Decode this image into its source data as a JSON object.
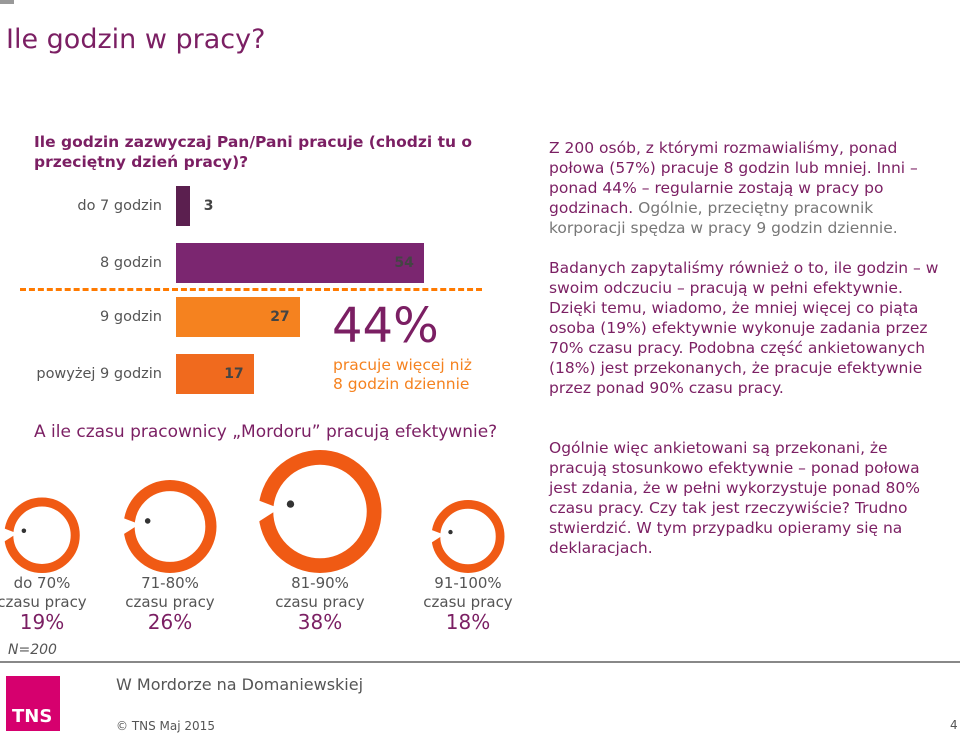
{
  "slide": {
    "title": "Ile godzin w pracy?",
    "question1": "Ile godzin zazwyczaj Pan/Pani pracuje (chodzi tu o przeciętny dzień pracy)?",
    "question2": "A ile czasu pracownicy „Mordoru” pracują efektywnie?",
    "highlight_pct": "44%",
    "highlight_line1": "pracuje więcej niż",
    "highlight_line2": "8 godzin dziennie",
    "n_label": "N=200"
  },
  "chart_data": [
    {
      "type": "bar",
      "orientation": "horizontal",
      "categories": [
        "do 7 godzin",
        "8 godzin",
        "9 godzin",
        "powyżej 9 godzin"
      ],
      "values": [
        3,
        54,
        27,
        17
      ],
      "colors": [
        "#5b1f4f",
        "#7b2670",
        "#f5821f",
        "#f06a1e"
      ],
      "title": "Ile godzin zazwyczaj Pan/Pani pracuje (chodzi tu o przeciętny dzień pracy)?"
    },
    {
      "type": "pictogram",
      "categories": [
        "do 70% czasu pracy",
        "71-80% czasu pracy",
        "81-90% czasu pracy",
        "91-100% czasu pracy"
      ],
      "values": [
        19,
        26,
        38,
        18
      ],
      "labels_line1": [
        "do 70%",
        "71-80%",
        "81-90%",
        "91-100%"
      ],
      "labels_line2": [
        "czasu pracy",
        "czasu pracy",
        "czasu pracy",
        "czasu pracy"
      ],
      "value_labels": [
        "19%",
        "26%",
        "38%",
        "18%"
      ],
      "color": "#f05a14",
      "title": "A ile czasu pracownicy „Mordoru” pracują efektywnie?"
    }
  ],
  "text": {
    "p1_a": "Z 200 osób, z którymi rozmawialiśmy, ponad połowa (57%) pracuje 8 godzin lub mniej. Inni – ponad 44% – regularnie zostają w pracy po godzinach. ",
    "p1_b": "Ogólnie, przeciętny pracownik korporacji spędza w pracy 9 godzin dziennie.",
    "p2": "Badanych zapytaliśmy również o to, ile godzin – w swoim odczuciu – pracują w pełni efektywnie. Dzięki temu, wiadomo, że mniej więcej co piąta osoba (19%) efektywnie wykonuje zadania przez 70% czasu pracy. Podobna część ankietowanych (18%) jest przekonanych, że pracuje efektywnie przez ponad 90% czasu pracy.",
    "p3": "Ogólnie więc ankietowani są przekonani, że pracują stosunkowo efektywnie – ponad połowa jest zdania, że w pełni wykorzystuje ponad 80% czasu pracy. Czy tak jest rzeczywiście? Trudno stwierdzić. W tym przypadku opieramy się na deklaracjach."
  },
  "footer": {
    "logo": "TNS",
    "title": "W Mordorze na Domaniewskiej",
    "copyright": "© TNS Maj 2015",
    "page": "4"
  }
}
